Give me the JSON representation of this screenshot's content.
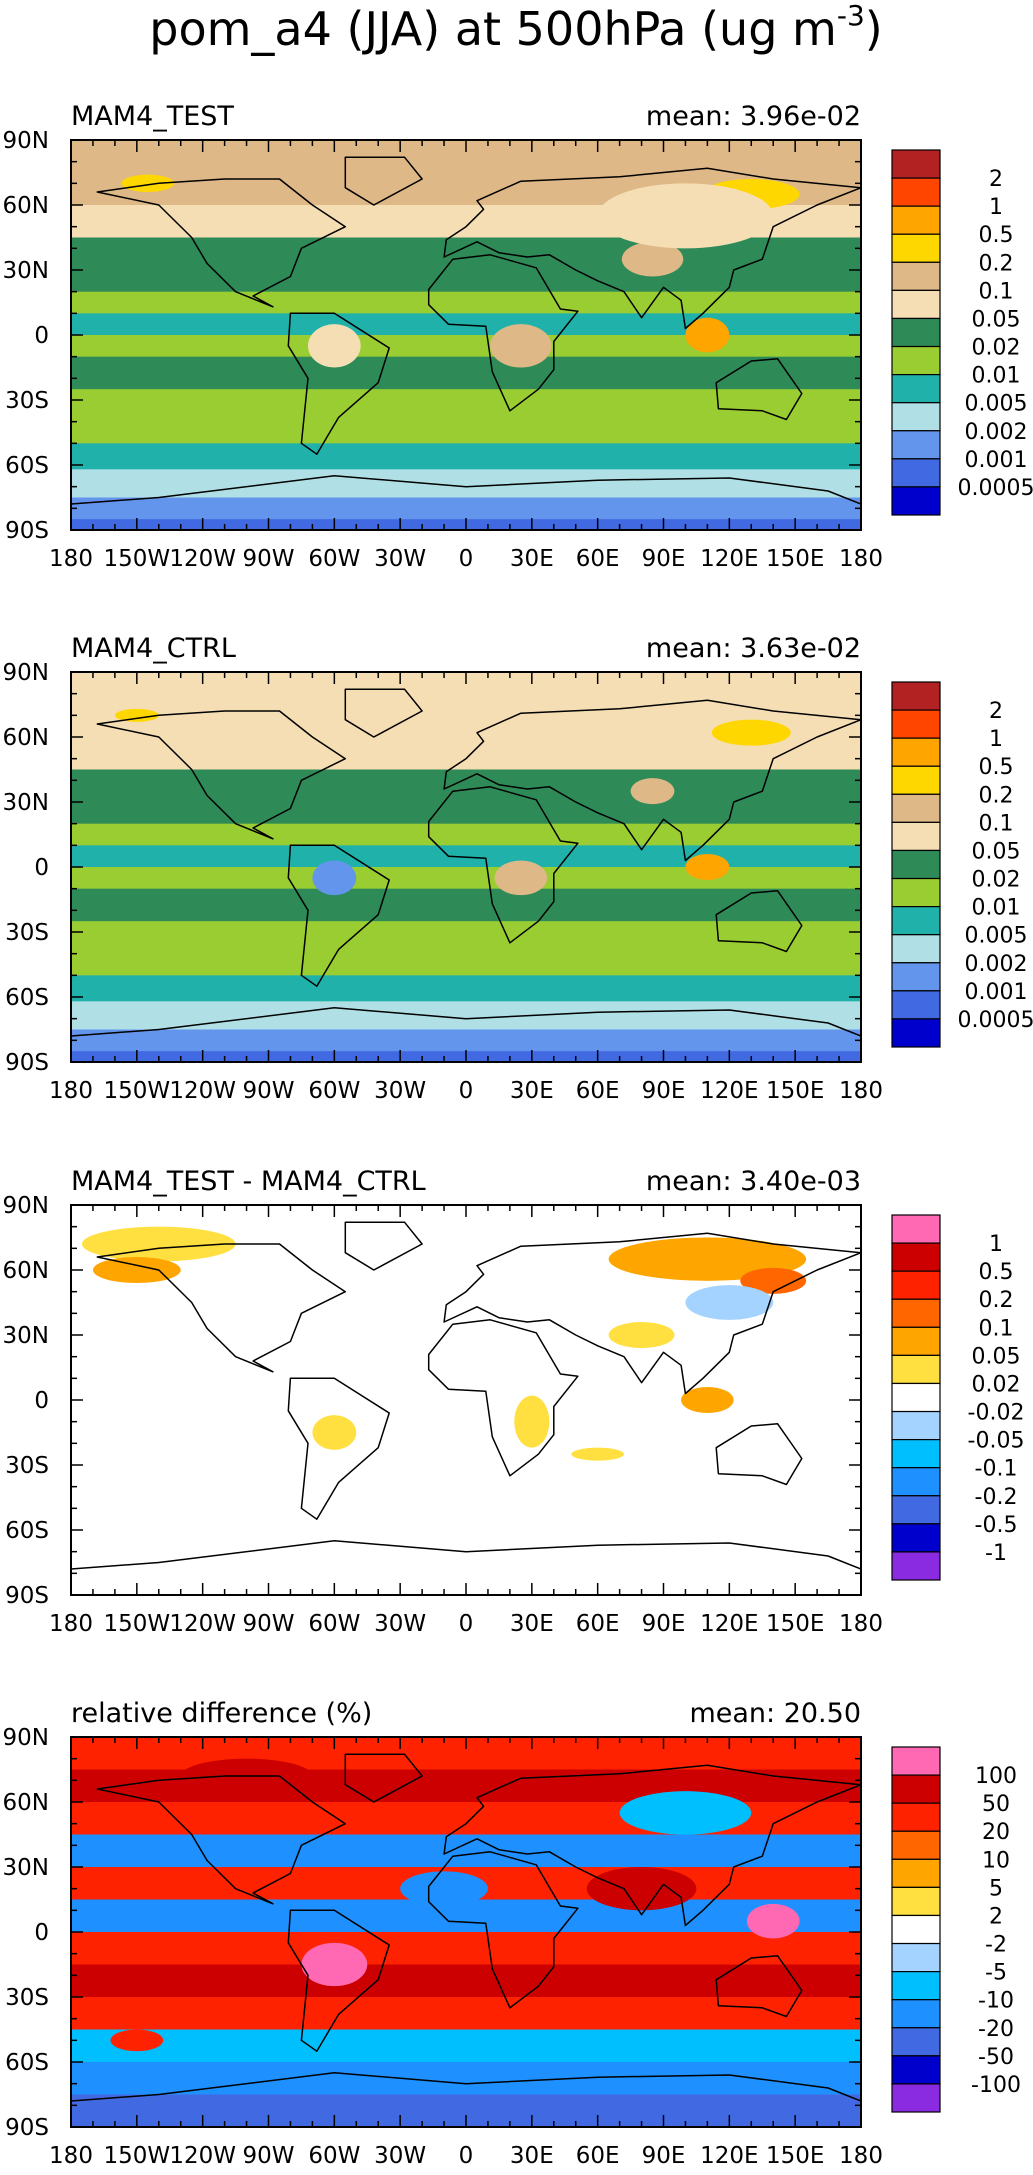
{
  "figure": {
    "title_main": "pom_a4 (JJA) at 500hPa (ug m",
    "title_sup": "-3",
    "title_end": ")"
  },
  "chart_data": [
    {
      "type": "heatmap",
      "title": "MAM4_TEST",
      "mean_label": "mean: 3.96e-02",
      "mean": 0.0396,
      "x_ticks": [
        "180",
        "150W",
        "120W",
        "90W",
        "60W",
        "30W",
        "0",
        "30E",
        "60E",
        "90E",
        "120E",
        "150E",
        "180"
      ],
      "y_ticks": [
        "90N",
        "60N",
        "30N",
        "0",
        "30S",
        "60S",
        "90S"
      ],
      "xlim": [
        -180,
        180
      ],
      "ylim": [
        -90,
        90
      ],
      "colorbar": {
        "labels": [
          "2",
          "1",
          "0.5",
          "0.2",
          "0.1",
          "0.05",
          "0.02",
          "0.01",
          "0.005",
          "0.002",
          "0.001",
          "0.0005"
        ],
        "colors": [
          "#b22222",
          "#ff4500",
          "#ffa500",
          "#ffd700",
          "#deb887",
          "#f5deb3",
          "#2e8b57",
          "#9acd32",
          "#20b2aa",
          "#b0e0e6",
          "#6495ed",
          "#4169e1",
          "#0000cd"
        ]
      },
      "bands": [
        {
          "lat": 90,
          "c": 4
        },
        {
          "lat": 75,
          "c": 4
        },
        {
          "lat": 60,
          "c": 5
        },
        {
          "lat": 45,
          "c": 6
        },
        {
          "lat": 30,
          "c": 6
        },
        {
          "lat": 20,
          "c": 7
        },
        {
          "lat": 10,
          "c": 8
        },
        {
          "lat": 0,
          "c": 7
        },
        {
          "lat": -10,
          "c": 6
        },
        {
          "lat": -25,
          "c": 7
        },
        {
          "lat": -40,
          "c": 7
        },
        {
          "lat": -50,
          "c": 8
        },
        {
          "lat": -62,
          "c": 9
        },
        {
          "lat": -75,
          "c": 10
        },
        {
          "lat": -85,
          "c": 11
        }
      ],
      "blobs": [
        {
          "lon": 110,
          "lat": 0,
          "rx": 10,
          "ry": 8,
          "c": 2
        },
        {
          "lon": 130,
          "lat": 65,
          "rx": 22,
          "ry": 7,
          "c": 3
        },
        {
          "lon": -145,
          "lat": 70,
          "rx": 12,
          "ry": 4,
          "c": 3
        },
        {
          "lon": 25,
          "lat": -5,
          "rx": 14,
          "ry": 10,
          "c": 4
        },
        {
          "lon": 85,
          "lat": 35,
          "rx": 14,
          "ry": 8,
          "c": 4
        },
        {
          "lon": 100,
          "lat": 55,
          "rx": 40,
          "ry": 15,
          "c": 5
        },
        {
          "lon": -60,
          "lat": -5,
          "rx": 12,
          "ry": 10,
          "c": 5
        }
      ]
    },
    {
      "type": "heatmap",
      "title": "MAM4_CTRL",
      "mean_label": "mean: 3.63e-02",
      "mean": 0.0363,
      "x_ticks": [
        "180",
        "150W",
        "120W",
        "90W",
        "60W",
        "30W",
        "0",
        "30E",
        "60E",
        "90E",
        "120E",
        "150E",
        "180"
      ],
      "y_ticks": [
        "90N",
        "60N",
        "30N",
        "0",
        "30S",
        "60S",
        "90S"
      ],
      "xlim": [
        -180,
        180
      ],
      "ylim": [
        -90,
        90
      ],
      "colorbar": {
        "labels": [
          "2",
          "1",
          "0.5",
          "0.2",
          "0.1",
          "0.05",
          "0.02",
          "0.01",
          "0.005",
          "0.002",
          "0.001",
          "0.0005"
        ],
        "colors": [
          "#b22222",
          "#ff4500",
          "#ffa500",
          "#ffd700",
          "#deb887",
          "#f5deb3",
          "#2e8b57",
          "#9acd32",
          "#20b2aa",
          "#b0e0e6",
          "#6495ed",
          "#4169e1",
          "#0000cd"
        ]
      },
      "bands": [
        {
          "lat": 90,
          "c": 5
        },
        {
          "lat": 75,
          "c": 5
        },
        {
          "lat": 60,
          "c": 5
        },
        {
          "lat": 45,
          "c": 6
        },
        {
          "lat": 30,
          "c": 6
        },
        {
          "lat": 20,
          "c": 7
        },
        {
          "lat": 10,
          "c": 8
        },
        {
          "lat": 0,
          "c": 7
        },
        {
          "lat": -10,
          "c": 6
        },
        {
          "lat": -25,
          "c": 7
        },
        {
          "lat": -40,
          "c": 7
        },
        {
          "lat": -50,
          "c": 8
        },
        {
          "lat": -62,
          "c": 9
        },
        {
          "lat": -75,
          "c": 10
        },
        {
          "lat": -85,
          "c": 11
        }
      ],
      "blobs": [
        {
          "lon": 110,
          "lat": 0,
          "rx": 10,
          "ry": 6,
          "c": 2
        },
        {
          "lon": 130,
          "lat": 62,
          "rx": 18,
          "ry": 6,
          "c": 3
        },
        {
          "lon": -150,
          "lat": 70,
          "rx": 10,
          "ry": 3,
          "c": 3
        },
        {
          "lon": 25,
          "lat": -5,
          "rx": 12,
          "ry": 8,
          "c": 4
        },
        {
          "lon": 85,
          "lat": 35,
          "rx": 10,
          "ry": 6,
          "c": 4
        },
        {
          "lon": -60,
          "lat": -5,
          "rx": 10,
          "ry": 8,
          "c": 10
        }
      ]
    },
    {
      "type": "heatmap",
      "title": "MAM4_TEST - MAM4_CTRL",
      "mean_label": "mean: 3.40e-03",
      "mean": 0.0034,
      "x_ticks": [
        "180",
        "150W",
        "120W",
        "90W",
        "60W",
        "30W",
        "0",
        "30E",
        "60E",
        "90E",
        "120E",
        "150E",
        "180"
      ],
      "y_ticks": [
        "90N",
        "60N",
        "30N",
        "0",
        "30S",
        "60S",
        "90S"
      ],
      "xlim": [
        -180,
        180
      ],
      "ylim": [
        -90,
        90
      ],
      "colorbar": {
        "labels": [
          "1",
          "0.5",
          "0.2",
          "0.1",
          "0.05",
          "0.02",
          "-0.02",
          "-0.05",
          "-0.1",
          "-0.2",
          "-0.5",
          "-1"
        ],
        "colors": [
          "#ff69b4",
          "#cc0000",
          "#ff2200",
          "#ff6600",
          "#ffa500",
          "#ffe040",
          "#ffffff",
          "#a4d3ff",
          "#00bfff",
          "#1e90ff",
          "#4169e1",
          "#0000cd",
          "#8a2be2"
        ]
      },
      "bands": [
        {
          "lat": 90,
          "c": 6
        }
      ],
      "blobs": [
        {
          "lon": -140,
          "lat": 72,
          "rx": 35,
          "ry": 8,
          "c": 5
        },
        {
          "lon": -150,
          "lat": 60,
          "rx": 20,
          "ry": 6,
          "c": 4
        },
        {
          "lon": 110,
          "lat": 65,
          "rx": 45,
          "ry": 10,
          "c": 4
        },
        {
          "lon": 140,
          "lat": 55,
          "rx": 15,
          "ry": 6,
          "c": 3
        },
        {
          "lon": 120,
          "lat": 45,
          "rx": 20,
          "ry": 8,
          "c": 7
        },
        {
          "lon": 110,
          "lat": 0,
          "rx": 12,
          "ry": 6,
          "c": 4
        },
        {
          "lon": 80,
          "lat": 30,
          "rx": 15,
          "ry": 6,
          "c": 5
        },
        {
          "lon": -60,
          "lat": -15,
          "rx": 10,
          "ry": 8,
          "c": 5
        },
        {
          "lon": 30,
          "lat": -10,
          "rx": 8,
          "ry": 12,
          "c": 5
        },
        {
          "lon": 60,
          "lat": -25,
          "rx": 12,
          "ry": 3,
          "c": 5
        }
      ]
    },
    {
      "type": "heatmap",
      "title": "relative difference (%)",
      "mean_label": "mean: 20.50",
      "mean": 20.5,
      "x_ticks": [
        "180",
        "150W",
        "120W",
        "90W",
        "60W",
        "30W",
        "0",
        "30E",
        "60E",
        "90E",
        "120E",
        "150E",
        "180"
      ],
      "y_ticks": [
        "90N",
        "60N",
        "30N",
        "0",
        "30S",
        "60S",
        "90S"
      ],
      "xlim": [
        -180,
        180
      ],
      "ylim": [
        -90,
        90
      ],
      "colorbar": {
        "labels": [
          "100",
          "50",
          "20",
          "10",
          "5",
          "2",
          "-2",
          "-5",
          "-10",
          "-20",
          "-50",
          "-100"
        ],
        "colors": [
          "#ff69b4",
          "#cc0000",
          "#ff2200",
          "#ff6600",
          "#ffa500",
          "#ffe040",
          "#ffffff",
          "#a4d3ff",
          "#00bfff",
          "#1e90ff",
          "#4169e1",
          "#0000cd",
          "#8a2be2"
        ]
      },
      "bands": [
        {
          "lat": 90,
          "c": 2
        },
        {
          "lat": 75,
          "c": 1
        },
        {
          "lat": 60,
          "c": 2
        },
        {
          "lat": 45,
          "c": 9
        },
        {
          "lat": 30,
          "c": 2
        },
        {
          "lat": 15,
          "c": 9
        },
        {
          "lat": 0,
          "c": 2
        },
        {
          "lat": -15,
          "c": 1
        },
        {
          "lat": -30,
          "c": 2
        },
        {
          "lat": -45,
          "c": 8
        },
        {
          "lat": -60,
          "c": 9
        },
        {
          "lat": -75,
          "c": 10
        },
        {
          "lat": -85,
          "c": 10
        }
      ],
      "blobs": [
        {
          "lon": -60,
          "lat": -15,
          "rx": 15,
          "ry": 10,
          "c": 0
        },
        {
          "lon": 140,
          "lat": 5,
          "rx": 12,
          "ry": 8,
          "c": 0
        },
        {
          "lon": -100,
          "lat": 72,
          "rx": 30,
          "ry": 8,
          "c": 1
        },
        {
          "lon": 80,
          "lat": 20,
          "rx": 25,
          "ry": 10,
          "c": 1
        },
        {
          "lon": -10,
          "lat": 20,
          "rx": 20,
          "ry": 8,
          "c": 9
        },
        {
          "lon": 100,
          "lat": 55,
          "rx": 30,
          "ry": 10,
          "c": 8
        },
        {
          "lon": -150,
          "lat": -50,
          "rx": 12,
          "ry": 5,
          "c": 2
        }
      ]
    }
  ]
}
